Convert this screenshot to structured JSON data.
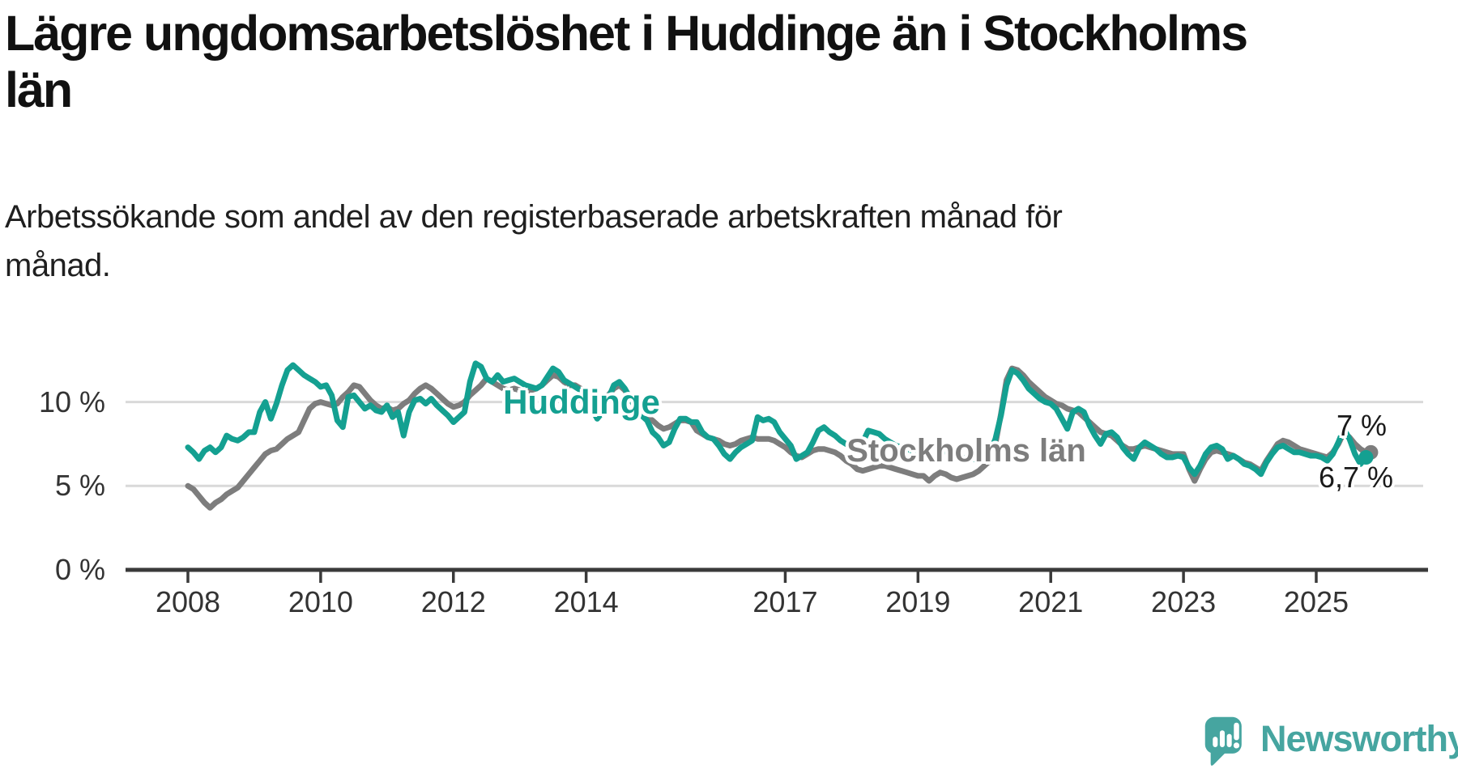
{
  "header": {
    "title": "Lägre ungdomsarbetslöshet i Huddinge än i Stockholms län",
    "title_lines": [
      "Lägre ungdomsarbetslöshet i Huddinge än i Stockholms",
      "län"
    ],
    "subtitle_lines": [
      "Arbetssökande som andel av den registerbaserade arbetskraften månad för",
      "månad."
    ]
  },
  "colors": {
    "huddinge": "#14a091",
    "stockholm": "#7d7d7d",
    "axis": "#3a3a3a",
    "grid": "#d9d9d9",
    "annotation_text": "#1a1a1a",
    "brand": "#46a5a0"
  },
  "series_labels": {
    "huddinge": "Huddinge",
    "stockholm": "Stockholms län"
  },
  "annotations": {
    "stockholm_end": "7 %",
    "huddinge_end": "6,7 %"
  },
  "axis": {
    "y_ticks": [
      {
        "pct": 0,
        "label": "0 %"
      },
      {
        "pct": 5,
        "label": "5 %"
      },
      {
        "pct": 10,
        "label": "10 %"
      }
    ],
    "x_ticks": [
      {
        "year": 2008,
        "label": "2008"
      },
      {
        "year": 2010,
        "label": "2010"
      },
      {
        "year": 2012,
        "label": "2012"
      },
      {
        "year": 2014,
        "label": "2014"
      },
      {
        "year": 2017,
        "label": "2017"
      },
      {
        "year": 2019,
        "label": "2019"
      },
      {
        "year": 2021,
        "label": "2021"
      },
      {
        "year": 2023,
        "label": "2023"
      },
      {
        "year": 2025,
        "label": "2025"
      }
    ]
  },
  "branding": {
    "wordmark": "Newsworthy",
    "icon": "newsworthy-speech-bubble-chart-icon"
  },
  "chart_data": {
    "type": "line",
    "title": "Lägre ungdomsarbetslöshet i Huddinge än i Stockholms län",
    "subtitle": "Arbetssökande som andel av den registerbaserade arbetskraften månad för månad.",
    "xlabel": "",
    "ylabel": "%",
    "ylim": [
      0,
      13
    ],
    "xlim": [
      2007.6,
      2026.4
    ],
    "grid": "horizontal",
    "legend": "inline-labels",
    "x_resolution": "monthly",
    "series": [
      {
        "name": "Huddinge",
        "color": "#14a091",
        "z": 2,
        "start_year": 2008,
        "start_month": 1,
        "end_label": "6,7 %",
        "values": [
          7.3,
          7.0,
          6.6,
          7.1,
          7.3,
          7.0,
          7.3,
          8.0,
          7.8,
          7.7,
          7.9,
          8.2,
          8.2,
          9.4,
          10.0,
          9.0,
          9.9,
          11.0,
          11.9,
          12.2,
          11.9,
          11.6,
          11.4,
          11.2,
          10.9,
          11.0,
          10.4,
          8.9,
          8.5,
          10.3,
          10.4,
          10.0,
          9.6,
          9.8,
          9.5,
          9.4,
          9.8,
          9.1,
          9.4,
          8.0,
          9.4,
          10.1,
          10.2,
          9.9,
          10.2,
          9.8,
          9.5,
          9.2,
          8.8,
          9.1,
          9.4,
          11.2,
          12.3,
          12.1,
          11.4,
          11.2,
          11.6,
          11.2,
          11.3,
          11.4,
          11.2,
          11.0,
          10.9,
          10.8,
          11.0,
          11.5,
          12.0,
          11.8,
          11.3,
          11.1,
          10.9,
          10.7,
          10.4,
          9.6,
          9.0,
          9.4,
          10.2,
          11.0,
          11.2,
          10.8,
          10.2,
          9.6,
          9.2,
          8.9,
          8.2,
          7.9,
          7.4,
          7.6,
          8.4,
          9.0,
          9.0,
          8.8,
          8.8,
          8.2,
          7.9,
          7.8,
          7.4,
          6.9,
          6.6,
          7.0,
          7.3,
          7.5,
          7.7,
          9.1,
          8.9,
          9.0,
          8.8,
          8.2,
          7.8,
          7.4,
          6.6,
          6.8,
          7.0,
          7.6,
          8.3,
          8.5,
          8.2,
          8.0,
          7.7,
          7.5,
          7.3,
          7.2,
          7.6,
          8.3,
          8.2,
          8.1,
          7.8,
          7.6,
          7.4,
          7.3,
          7.2,
          7.1,
          7.0,
          6.8,
          6.6,
          6.7,
          6.9,
          7.1,
          7.0,
          6.8,
          6.7,
          6.6,
          6.6,
          6.7,
          6.8,
          7.0,
          7.8,
          9.2,
          11.0,
          11.9,
          11.7,
          11.3,
          10.8,
          10.5,
          10.2,
          10.0,
          9.9,
          9.6,
          9.0,
          8.4,
          9.4,
          9.6,
          9.4,
          8.6,
          8.0,
          7.5,
          8.1,
          8.2,
          7.9,
          7.3,
          6.9,
          6.6,
          7.3,
          7.6,
          7.4,
          7.2,
          6.9,
          6.7,
          6.7,
          6.8,
          6.7,
          6.1,
          5.7,
          6.2,
          6.9,
          7.3,
          7.4,
          7.2,
          6.6,
          6.8,
          6.6,
          6.3,
          6.2,
          6.0,
          5.7,
          6.4,
          6.9,
          7.3,
          7.4,
          7.2,
          7.0,
          7.0,
          6.9,
          6.8,
          6.8,
          6.7,
          6.5,
          6.9,
          7.6,
          8.4,
          7.8,
          6.9,
          6.3,
          6.7
        ]
      },
      {
        "name": "Stockholms län",
        "color": "#7d7d7d",
        "z": 1,
        "start_year": 2008,
        "start_month": 1,
        "end_label": "7 %",
        "values": [
          5.0,
          4.8,
          4.4,
          4.0,
          3.7,
          4.0,
          4.2,
          4.5,
          4.7,
          4.9,
          5.3,
          5.7,
          6.1,
          6.5,
          6.9,
          7.1,
          7.2,
          7.5,
          7.8,
          8.0,
          8.2,
          8.9,
          9.6,
          9.9,
          10.0,
          9.9,
          9.8,
          9.9,
          10.3,
          10.6,
          11.0,
          10.9,
          10.5,
          10.1,
          9.8,
          9.6,
          9.7,
          9.5,
          9.6,
          9.9,
          10.1,
          10.5,
          10.8,
          11.0,
          10.8,
          10.5,
          10.2,
          9.9,
          9.7,
          9.8,
          10.0,
          10.4,
          10.7,
          11.0,
          11.4,
          11.2,
          11.0,
          10.8,
          10.7,
          10.8,
          10.7,
          10.6,
          10.7,
          10.8,
          11.0,
          11.3,
          11.6,
          11.5,
          11.2,
          11.0,
          11.0,
          10.8,
          10.5,
          10.2,
          10.0,
          10.1,
          10.4,
          10.8,
          11.0,
          10.7,
          10.2,
          9.8,
          9.4,
          9.1,
          8.9,
          8.6,
          8.4,
          8.5,
          8.7,
          8.9,
          8.9,
          8.8,
          8.3,
          8.1,
          7.9,
          7.8,
          7.7,
          7.5,
          7.4,
          7.5,
          7.7,
          7.8,
          7.9,
          7.8,
          7.8,
          7.8,
          7.7,
          7.5,
          7.3,
          7.0,
          6.8,
          6.7,
          6.9,
          7.1,
          7.2,
          7.2,
          7.1,
          7.0,
          6.8,
          6.5,
          6.3,
          6.0,
          5.9,
          6.0,
          6.1,
          6.2,
          6.2,
          6.1,
          6.0,
          5.9,
          5.8,
          5.7,
          5.6,
          5.6,
          5.3,
          5.6,
          5.8,
          5.7,
          5.5,
          5.4,
          5.5,
          5.6,
          5.7,
          5.9,
          6.2,
          6.5,
          7.5,
          9.3,
          11.3,
          12.0,
          11.9,
          11.6,
          11.2,
          10.9,
          10.6,
          10.3,
          10.1,
          9.9,
          9.8,
          9.6,
          9.5,
          9.4,
          9.1,
          8.8,
          8.5,
          8.2,
          8.1,
          8.0,
          7.7,
          7.4,
          7.2,
          7.2,
          7.3,
          7.4,
          7.3,
          7.2,
          7.1,
          7.0,
          6.9,
          6.9,
          6.9,
          6.0,
          5.3,
          6.0,
          6.6,
          7.0,
          7.1,
          7.0,
          6.9,
          6.8,
          6.6,
          6.4,
          6.3,
          6.1,
          5.9,
          6.5,
          7.0,
          7.5,
          7.7,
          7.6,
          7.4,
          7.2,
          7.1,
          7.0,
          6.9,
          6.8,
          6.7,
          7.0,
          7.5,
          8.2,
          7.9,
          7.5,
          7.2,
          7.0
        ]
      }
    ]
  }
}
